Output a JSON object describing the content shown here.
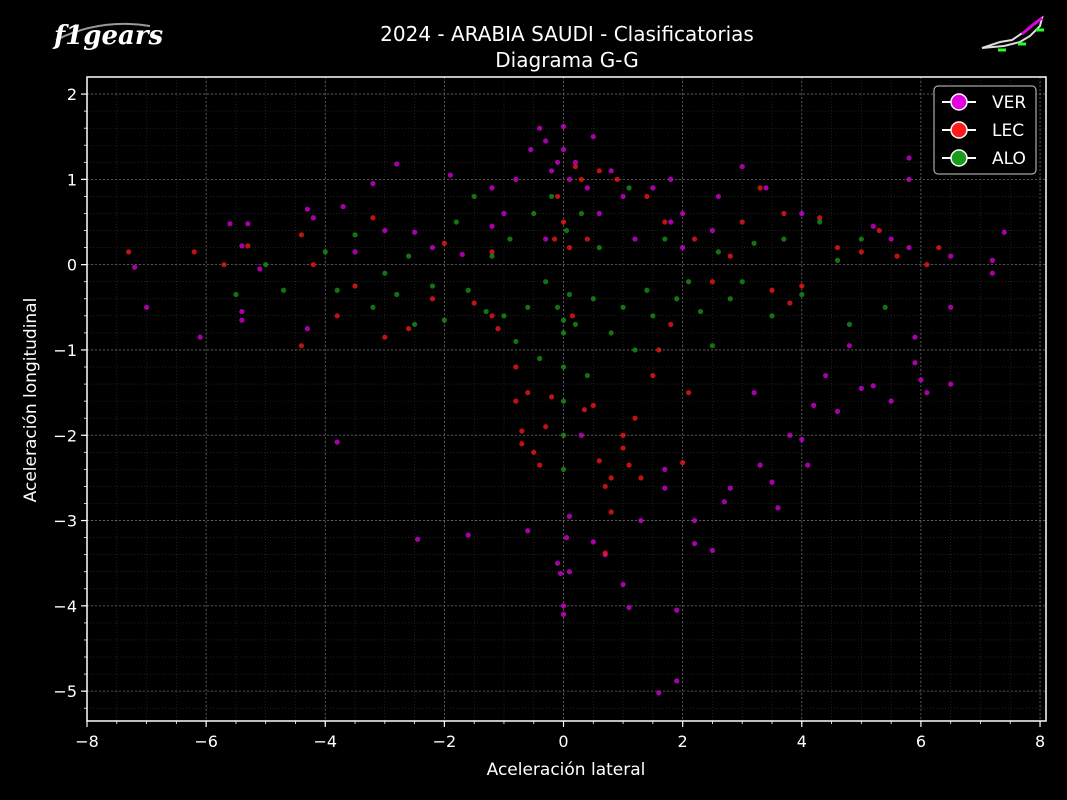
{
  "logo": {
    "text": "f1gears"
  },
  "chart_data": {
    "type": "scatter",
    "title": "2024 - ARABIA SAUDI - Clasificatorias",
    "subtitle": "Diagrama G-G",
    "xlabel": "Aceleración lateral",
    "ylabel": "Aceleración longitudinal",
    "xlim": [
      -8,
      8.1
    ],
    "ylim": [
      -5.35,
      2.2
    ],
    "xticks": [
      -8,
      -6,
      -4,
      -2,
      0,
      2,
      4,
      6,
      8
    ],
    "xtick_labels": [
      "−8",
      "−6",
      "−4",
      "−2",
      "0",
      "2",
      "4",
      "6",
      "8"
    ],
    "yticks": [
      -5,
      -4,
      -3,
      -2,
      -1,
      0,
      1,
      2
    ],
    "ytick_labels": [
      "−5",
      "−4",
      "−3",
      "−2",
      "−1",
      "0",
      "1",
      "2"
    ],
    "grid": true,
    "legend_position": "top-right",
    "series": [
      {
        "name": "VER",
        "color": "#e000e0",
        "points": [
          [
            -7.2,
            -0.03
          ],
          [
            -7.0,
            -0.5
          ],
          [
            -6.1,
            -0.85
          ],
          [
            -5.6,
            0.48
          ],
          [
            -5.4,
            0.22
          ],
          [
            -5.4,
            -0.55
          ],
          [
            -5.4,
            -0.65
          ],
          [
            -5.3,
            0.48
          ],
          [
            -5.1,
            -0.05
          ],
          [
            -4.3,
            0.65
          ],
          [
            -4.3,
            -0.75
          ],
          [
            -4.2,
            0.55
          ],
          [
            -3.8,
            -2.08
          ],
          [
            -3.7,
            0.68
          ],
          [
            -3.5,
            0.15
          ],
          [
            -3.2,
            0.95
          ],
          [
            -3.0,
            0.4
          ],
          [
            -2.8,
            1.18
          ],
          [
            -2.5,
            0.38
          ],
          [
            -2.45,
            -3.22
          ],
          [
            -2.2,
            0.2
          ],
          [
            -1.9,
            1.05
          ],
          [
            -1.7,
            0.12
          ],
          [
            -1.6,
            -3.17
          ],
          [
            -1.2,
            0.45
          ],
          [
            -1.2,
            0.9
          ],
          [
            -1.0,
            0.6
          ],
          [
            -0.8,
            1.0
          ],
          [
            -0.6,
            -3.12
          ],
          [
            -0.55,
            1.35
          ],
          [
            -0.4,
            1.6
          ],
          [
            -0.3,
            1.45
          ],
          [
            -0.3,
            0.3
          ],
          [
            -0.2,
            1.1
          ],
          [
            -0.1,
            1.2
          ],
          [
            -0.1,
            -3.5
          ],
          [
            -0.05,
            -3.62
          ],
          [
            0.0,
            1.62
          ],
          [
            0.0,
            1.35
          ],
          [
            0.0,
            -4.0
          ],
          [
            0.0,
            -4.1
          ],
          [
            0.05,
            -3.2
          ],
          [
            0.1,
            1.0
          ],
          [
            0.1,
            -2.95
          ],
          [
            0.1,
            -3.6
          ],
          [
            0.2,
            1.2
          ],
          [
            0.3,
            -2.0
          ],
          [
            0.4,
            0.9
          ],
          [
            0.5,
            1.5
          ],
          [
            0.5,
            -3.25
          ],
          [
            0.6,
            0.6
          ],
          [
            0.7,
            -3.4
          ],
          [
            0.8,
            1.1
          ],
          [
            1.0,
            0.8
          ],
          [
            1.0,
            -3.75
          ],
          [
            1.1,
            -4.02
          ],
          [
            1.2,
            0.3
          ],
          [
            1.3,
            -3.0
          ],
          [
            1.5,
            0.9
          ],
          [
            1.6,
            -5.02
          ],
          [
            1.7,
            -2.4
          ],
          [
            1.7,
            -2.62
          ],
          [
            1.8,
            1.0
          ],
          [
            1.8,
            0.5
          ],
          [
            1.9,
            -4.88
          ],
          [
            1.9,
            -4.05
          ],
          [
            2.0,
            0.6
          ],
          [
            2.0,
            0.2
          ],
          [
            2.2,
            -3.0
          ],
          [
            2.2,
            -3.27
          ],
          [
            2.5,
            0.4
          ],
          [
            2.5,
            -3.35
          ],
          [
            2.6,
            0.8
          ],
          [
            2.7,
            -2.78
          ],
          [
            2.8,
            -2.62
          ],
          [
            3.0,
            1.15
          ],
          [
            3.2,
            -1.5
          ],
          [
            3.3,
            -2.35
          ],
          [
            3.4,
            0.9
          ],
          [
            3.5,
            -2.55
          ],
          [
            3.6,
            -2.85
          ],
          [
            3.8,
            -2.0
          ],
          [
            4.0,
            -2.05
          ],
          [
            4.0,
            0.6
          ],
          [
            4.1,
            -2.35
          ],
          [
            4.2,
            -1.65
          ],
          [
            4.4,
            -1.3
          ],
          [
            4.6,
            -1.72
          ],
          [
            4.8,
            -0.95
          ],
          [
            5.0,
            -1.45
          ],
          [
            5.2,
            0.45
          ],
          [
            5.2,
            -1.42
          ],
          [
            5.5,
            -1.6
          ],
          [
            5.5,
            0.3
          ],
          [
            5.8,
            1.25
          ],
          [
            5.8,
            1.0
          ],
          [
            5.8,
            0.2
          ],
          [
            5.9,
            -0.85
          ],
          [
            5.9,
            -1.15
          ],
          [
            6.0,
            -1.35
          ],
          [
            6.1,
            -1.5
          ],
          [
            6.5,
            -1.4
          ],
          [
            6.5,
            -0.5
          ],
          [
            6.5,
            0.1
          ],
          [
            7.2,
            0.05
          ],
          [
            7.2,
            -0.1
          ],
          [
            7.4,
            0.38
          ]
        ]
      },
      {
        "name": "LEC",
        "color": "#ff1a1a",
        "points": [
          [
            -7.3,
            0.15
          ],
          [
            -6.2,
            0.15
          ],
          [
            -5.7,
            0.0
          ],
          [
            -5.3,
            0.22
          ],
          [
            -4.4,
            0.35
          ],
          [
            -4.4,
            -0.95
          ],
          [
            -4.2,
            0.0
          ],
          [
            -3.8,
            -0.6
          ],
          [
            -3.5,
            -0.25
          ],
          [
            -3.2,
            0.55
          ],
          [
            -3.0,
            -0.85
          ],
          [
            -2.6,
            -0.75
          ],
          [
            -2.2,
            -0.4
          ],
          [
            -2.0,
            0.25
          ],
          [
            -1.5,
            -0.45
          ],
          [
            -1.2,
            0.15
          ],
          [
            -1.2,
            -0.6
          ],
          [
            -1.1,
            -0.75
          ],
          [
            -0.8,
            -1.2
          ],
          [
            -0.8,
            -1.6
          ],
          [
            -0.7,
            -1.95
          ],
          [
            -0.7,
            -2.1
          ],
          [
            -0.6,
            -1.5
          ],
          [
            -0.5,
            -2.2
          ],
          [
            -0.4,
            -2.35
          ],
          [
            -0.3,
            -1.9
          ],
          [
            -0.2,
            -1.55
          ],
          [
            -0.15,
            0.3
          ],
          [
            -0.1,
            0.8
          ],
          [
            0.0,
            0.5
          ],
          [
            0.1,
            0.2
          ],
          [
            0.15,
            -0.6
          ],
          [
            0.2,
            1.15
          ],
          [
            0.3,
            1.0
          ],
          [
            0.35,
            -1.7
          ],
          [
            0.4,
            0.3
          ],
          [
            0.5,
            -1.65
          ],
          [
            0.6,
            1.1
          ],
          [
            0.6,
            -2.3
          ],
          [
            0.7,
            -2.6
          ],
          [
            0.7,
            -3.38
          ],
          [
            0.8,
            -2.5
          ],
          [
            0.8,
            -2.9
          ],
          [
            0.9,
            1.0
          ],
          [
            1.0,
            -2.15
          ],
          [
            1.0,
            -2.0
          ],
          [
            1.1,
            -2.35
          ],
          [
            1.2,
            -1.8
          ],
          [
            1.3,
            -2.5
          ],
          [
            1.4,
            0.8
          ],
          [
            1.5,
            -1.3
          ],
          [
            1.6,
            -1.0
          ],
          [
            1.7,
            0.5
          ],
          [
            1.8,
            -0.7
          ],
          [
            2.0,
            -2.32
          ],
          [
            2.1,
            -1.5
          ],
          [
            2.2,
            0.3
          ],
          [
            2.5,
            -0.2
          ],
          [
            2.8,
            0.1
          ],
          [
            3.0,
            0.5
          ],
          [
            3.3,
            0.9
          ],
          [
            3.5,
            -0.3
          ],
          [
            3.7,
            0.6
          ],
          [
            3.8,
            -0.45
          ],
          [
            4.0,
            -0.25
          ],
          [
            4.3,
            0.55
          ],
          [
            4.6,
            0.2
          ],
          [
            5.0,
            0.15
          ],
          [
            5.3,
            0.4
          ],
          [
            5.6,
            0.1
          ],
          [
            6.1,
            0.0
          ],
          [
            6.3,
            0.2
          ]
        ]
      },
      {
        "name": "ALO",
        "color": "#1a9a1a",
        "points": [
          [
            -5.5,
            -0.35
          ],
          [
            -5.0,
            0.0
          ],
          [
            -4.7,
            -0.3
          ],
          [
            -4.0,
            0.15
          ],
          [
            -3.8,
            -0.3
          ],
          [
            -3.5,
            0.35
          ],
          [
            -3.2,
            -0.5
          ],
          [
            -3.0,
            -0.1
          ],
          [
            -2.8,
            -0.35
          ],
          [
            -2.6,
            0.1
          ],
          [
            -2.5,
            -0.7
          ],
          [
            -2.2,
            -0.25
          ],
          [
            -2.0,
            -0.65
          ],
          [
            -1.8,
            0.5
          ],
          [
            -1.6,
            -0.3
          ],
          [
            -1.5,
            0.8
          ],
          [
            -1.3,
            -0.55
          ],
          [
            -1.2,
            0.1
          ],
          [
            -1.0,
            -0.6
          ],
          [
            -0.9,
            0.3
          ],
          [
            -0.8,
            -0.9
          ],
          [
            -0.6,
            -0.5
          ],
          [
            -0.5,
            0.6
          ],
          [
            -0.4,
            -1.1
          ],
          [
            -0.3,
            -0.2
          ],
          [
            -0.2,
            0.8
          ],
          [
            -0.1,
            -0.5
          ],
          [
            0.0,
            -0.65
          ],
          [
            0.0,
            -0.8
          ],
          [
            0.0,
            -1.2
          ],
          [
            0.0,
            -1.6
          ],
          [
            0.0,
            -2.0
          ],
          [
            0.0,
            -2.4
          ],
          [
            0.05,
            0.4
          ],
          [
            0.1,
            -0.35
          ],
          [
            0.2,
            -0.7
          ],
          [
            0.3,
            0.6
          ],
          [
            0.4,
            -1.3
          ],
          [
            0.5,
            -0.4
          ],
          [
            0.6,
            0.2
          ],
          [
            0.8,
            -0.8
          ],
          [
            1.0,
            -0.5
          ],
          [
            1.1,
            0.9
          ],
          [
            1.2,
            -1.0
          ],
          [
            1.4,
            -0.3
          ],
          [
            1.5,
            -0.6
          ],
          [
            1.7,
            0.3
          ],
          [
            1.9,
            -0.4
          ],
          [
            2.1,
            -0.2
          ],
          [
            2.3,
            -0.55
          ],
          [
            2.5,
            -0.95
          ],
          [
            2.6,
            0.15
          ],
          [
            2.8,
            -0.4
          ],
          [
            3.0,
            -0.2
          ],
          [
            3.2,
            0.25
          ],
          [
            3.5,
            -0.6
          ],
          [
            3.7,
            0.3
          ],
          [
            4.0,
            -0.35
          ],
          [
            4.3,
            0.5
          ],
          [
            4.6,
            0.05
          ],
          [
            4.8,
            -0.7
          ],
          [
            5.0,
            0.3
          ],
          [
            5.4,
            -0.5
          ]
        ]
      }
    ]
  }
}
